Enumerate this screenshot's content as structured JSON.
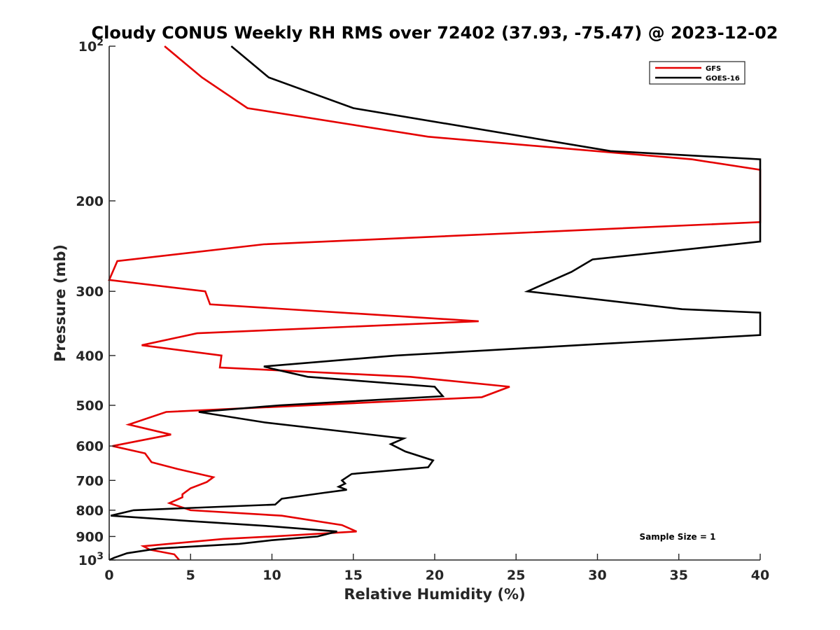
{
  "chart_data": {
    "type": "line",
    "title": "Cloudy CONUS Weekly RH RMS over 72402 (37.93, -75.47) @ 2023-12-02",
    "xlabel": "Relative Humidity (%)",
    "ylabel": "Pressure (mb)",
    "xlim": [
      0,
      40
    ],
    "ylim": [
      100,
      1000
    ],
    "yscale": "log",
    "y_reversed": true,
    "grid": false,
    "legend_position": "top-right",
    "x_ticks": [
      "0",
      "5",
      "10",
      "15",
      "20",
      "25",
      "30",
      "35",
      "40"
    ],
    "y_ticks": [
      {
        "value": 100,
        "base": "10",
        "exp": "2"
      },
      {
        "value": 200,
        "label": "200"
      },
      {
        "value": 300,
        "label": "300"
      },
      {
        "value": 400,
        "label": "400"
      },
      {
        "value": 500,
        "label": "500"
      },
      {
        "value": 600,
        "label": "600"
      },
      {
        "value": 700,
        "label": "700"
      },
      {
        "value": 800,
        "label": "800"
      },
      {
        "value": 900,
        "label": "900"
      },
      {
        "value": 1000,
        "base": "10",
        "exp": "3"
      }
    ],
    "annotation": "Sample Size = 1",
    "series": [
      {
        "name": "GFS",
        "color": "#e50000",
        "points": [
          [
            3.4,
            100
          ],
          [
            5.7,
            115
          ],
          [
            8.5,
            132
          ],
          [
            19.6,
            150
          ],
          [
            35.8,
            166
          ],
          [
            40,
            174
          ],
          [
            40,
            220
          ],
          [
            9.5,
            243
          ],
          [
            0.5,
            262
          ],
          [
            0.0,
            285
          ],
          [
            5.9,
            300
          ],
          [
            6.2,
            318
          ],
          [
            22.7,
            343
          ],
          [
            5.4,
            362
          ],
          [
            2.0,
            382
          ],
          [
            6.9,
            400
          ],
          [
            6.8,
            422
          ],
          [
            18.5,
            440
          ],
          [
            24.6,
            460
          ],
          [
            22.9,
            482
          ],
          [
            3.5,
            515
          ],
          [
            1.2,
            545
          ],
          [
            3.8,
            570
          ],
          [
            0.2,
            600
          ],
          [
            2.2,
            620
          ],
          [
            2.6,
            645
          ],
          [
            4.2,
            665
          ],
          [
            6.4,
            690
          ],
          [
            6.0,
            705
          ],
          [
            5.0,
            725
          ],
          [
            4.5,
            745
          ],
          [
            4.5,
            755
          ],
          [
            3.7,
            775
          ],
          [
            5.0,
            800
          ],
          [
            10.6,
            820
          ],
          [
            14.3,
            855
          ],
          [
            15.2,
            880
          ],
          [
            10.0,
            900
          ],
          [
            7.0,
            910
          ],
          [
            2.1,
            940
          ],
          [
            2.5,
            955
          ],
          [
            4.0,
            975
          ],
          [
            4.3,
            1000
          ]
        ]
      },
      {
        "name": "GOES-16",
        "color": "#000000",
        "points": [
          [
            7.5,
            100
          ],
          [
            9.8,
            115
          ],
          [
            15.0,
            132
          ],
          [
            30.8,
            160
          ],
          [
            40,
            166
          ],
          [
            40,
            240
          ],
          [
            29.7,
            260
          ],
          [
            28.4,
            275
          ],
          [
            25.7,
            300
          ],
          [
            35.2,
            325
          ],
          [
            40,
            330
          ],
          [
            40,
            365
          ],
          [
            30.0,
            380
          ],
          [
            17.6,
            400
          ],
          [
            9.5,
            420
          ],
          [
            10.1,
            425
          ],
          [
            12.2,
            440
          ],
          [
            20.0,
            460
          ],
          [
            20.5,
            480
          ],
          [
            10.5,
            500
          ],
          [
            5.5,
            515
          ],
          [
            9.6,
            540
          ],
          [
            15.0,
            565
          ],
          [
            18.1,
            580
          ],
          [
            17.3,
            595
          ],
          [
            18.2,
            615
          ],
          [
            19.9,
            640
          ],
          [
            19.6,
            660
          ],
          [
            14.9,
            680
          ],
          [
            14.3,
            700
          ],
          [
            14.5,
            710
          ],
          [
            14.1,
            720
          ],
          [
            14.6,
            730
          ],
          [
            13.2,
            740
          ],
          [
            10.6,
            760
          ],
          [
            10.2,
            780
          ],
          [
            1.5,
            800
          ],
          [
            0.1,
            820
          ],
          [
            5.0,
            840
          ],
          [
            10.0,
            860
          ],
          [
            14.0,
            880
          ],
          [
            12.8,
            900
          ],
          [
            10.0,
            915
          ],
          [
            8.0,
            930
          ],
          [
            3.0,
            950
          ],
          [
            1.1,
            970
          ],
          [
            0.3,
            990
          ],
          [
            0.0,
            1000
          ]
        ]
      }
    ]
  }
}
